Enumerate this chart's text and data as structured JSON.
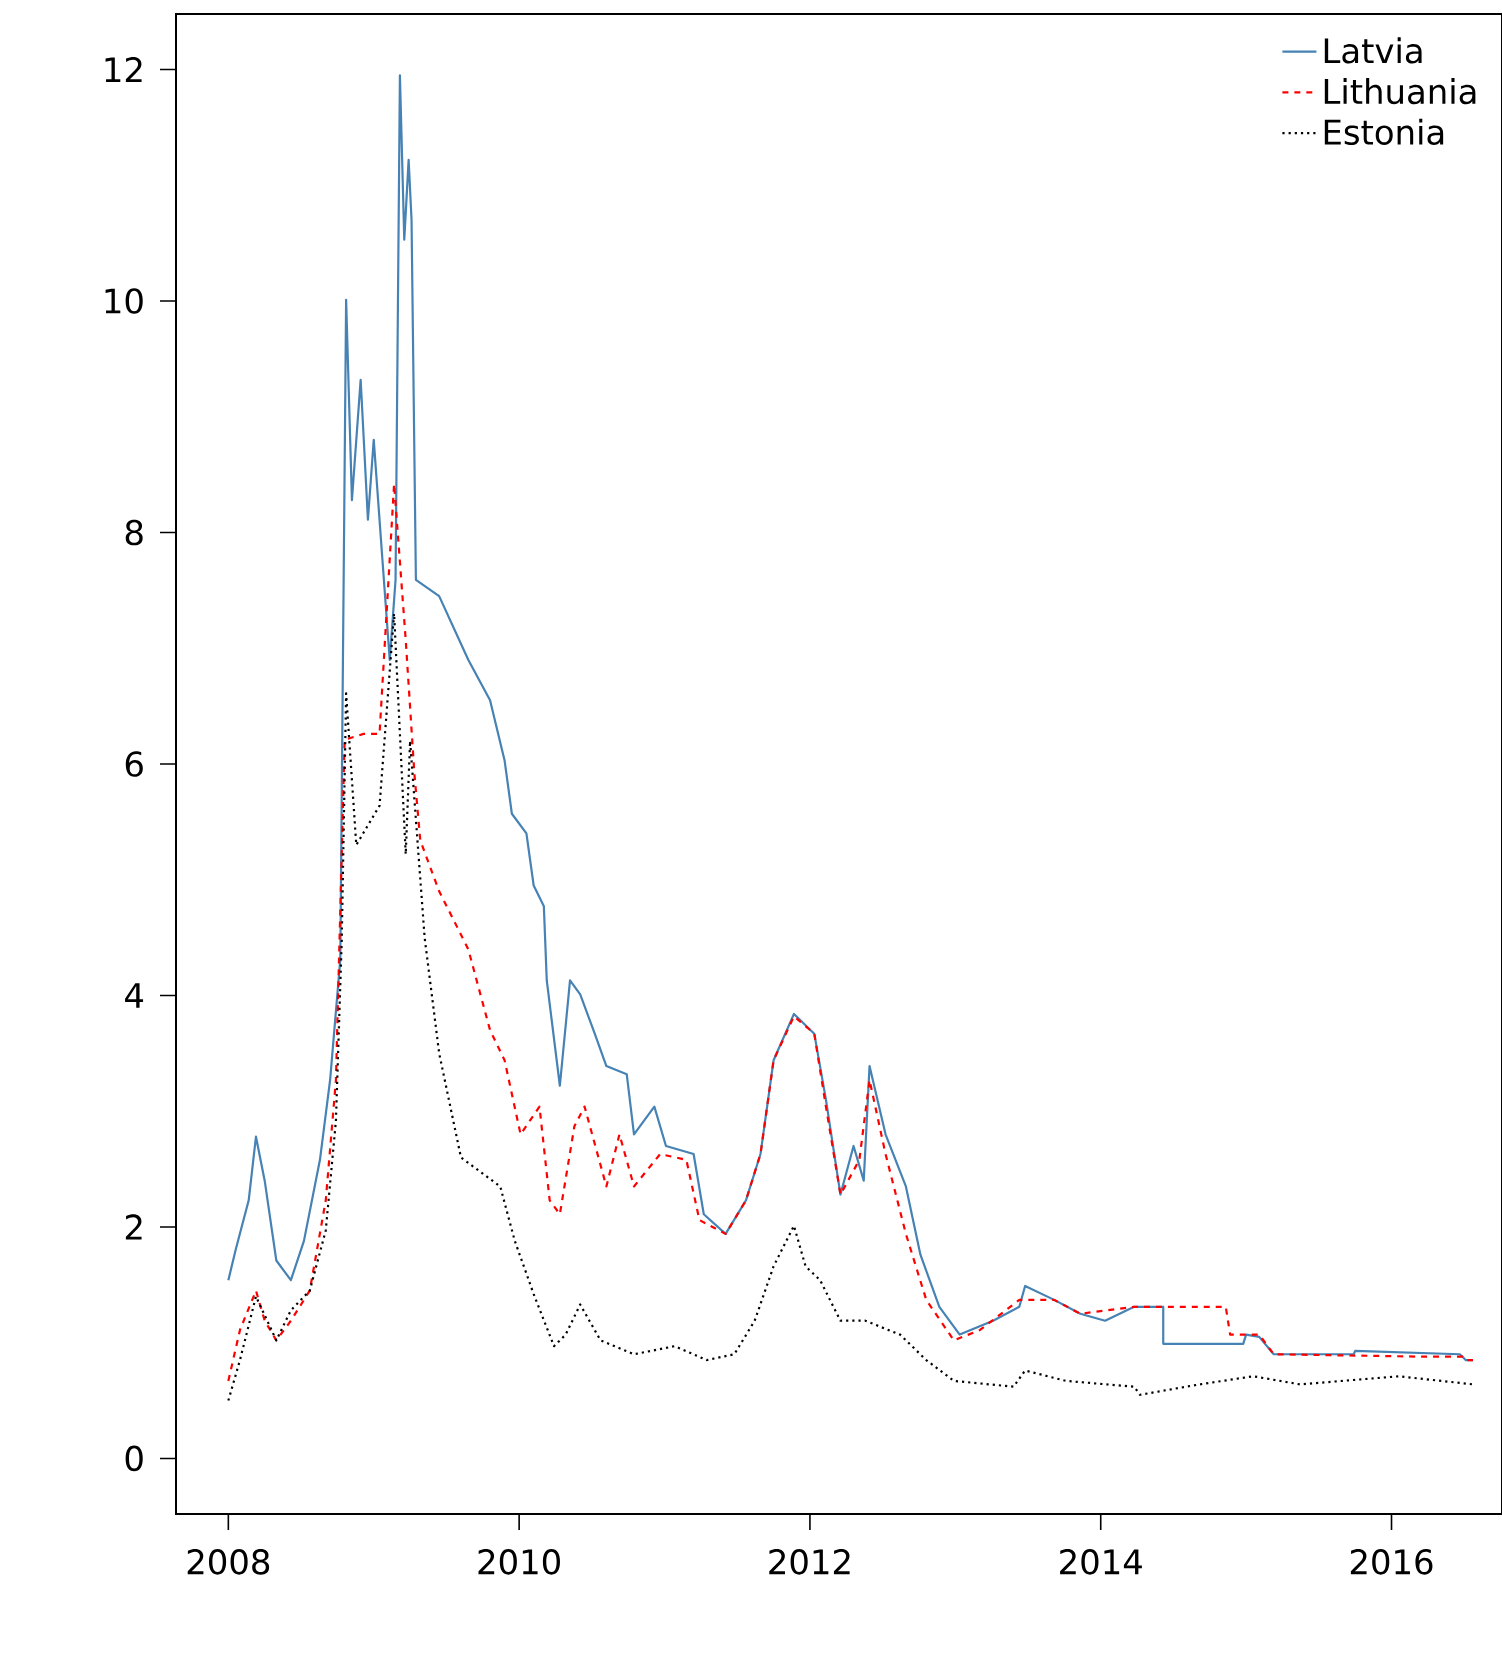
{
  "chart_data": {
    "type": "line",
    "xlim": [
      2007.64,
      2016.76
    ],
    "ylim": [
      -0.48,
      12.48
    ],
    "xticks": [
      2008,
      2010,
      2012,
      2014,
      2016
    ],
    "yticks": [
      0,
      2,
      4,
      6,
      8,
      10,
      12
    ],
    "legend": "top right",
    "marker": "none",
    "grid": false,
    "series": [
      {
        "name": "Latvia",
        "color": "#4682b4",
        "line_style": "solid",
        "x": [
          2008.0,
          2008.05,
          2008.14,
          2008.19,
          2008.25,
          2008.33,
          2008.43,
          2008.52,
          2008.63,
          2008.7,
          2008.77,
          2008.81,
          2008.85,
          2008.91,
          2008.96,
          2009.0,
          2009.06,
          2009.11,
          2009.15,
          2009.18,
          2009.21,
          2009.24,
          2009.26,
          2009.29,
          2009.45,
          2009.65,
          2009.8,
          2009.9,
          2009.95,
          2010.05,
          2010.1,
          2010.17,
          2010.19,
          2010.28,
          2010.35,
          2010.42,
          2010.52,
          2010.6,
          2010.74,
          2010.79,
          2010.93,
          2011.01,
          2011.2,
          2011.27,
          2011.42,
          2011.56,
          2011.66,
          2011.75,
          2011.89,
          2012.03,
          2012.11,
          2012.21,
          2012.3,
          2012.37,
          2012.41,
          2012.52,
          2012.66,
          2012.76,
          2012.89,
          2013.03,
          2013.26,
          2013.44,
          2013.48,
          2013.68,
          2013.86,
          2014.03,
          2014.23,
          2014.43,
          2014.43,
          2014.98,
          2015.0,
          2015.09,
          2015.19,
          2015.74,
          2015.75,
          2016.47,
          2016.51,
          2016.56
        ],
        "values": [
          1.54,
          1.8,
          2.23,
          2.78,
          2.4,
          1.71,
          1.54,
          1.88,
          2.58,
          3.27,
          4.31,
          10.01,
          8.28,
          9.32,
          8.11,
          8.8,
          7.76,
          6.9,
          7.59,
          11.95,
          10.53,
          11.22,
          10.7,
          7.59,
          7.45,
          6.9,
          6.55,
          6.03,
          5.57,
          5.4,
          4.95,
          4.77,
          4.13,
          3.22,
          4.13,
          4.01,
          3.67,
          3.39,
          3.32,
          2.8,
          3.04,
          2.7,
          2.63,
          2.11,
          1.94,
          2.23,
          2.63,
          3.44,
          3.84,
          3.67,
          3.1,
          2.28,
          2.7,
          2.4,
          3.39,
          2.8,
          2.35,
          1.76,
          1.31,
          1.07,
          1.19,
          1.31,
          1.49,
          1.37,
          1.25,
          1.19,
          1.31,
          1.31,
          0.99,
          0.99,
          1.07,
          1.05,
          0.9,
          0.9,
          0.93,
          0.9,
          0.85,
          0.85
        ]
      },
      {
        "name": "Lithuania",
        "color": "#ff0000",
        "line_style": "dashed",
        "x": [
          2008.0,
          2008.08,
          2008.19,
          2008.25,
          2008.33,
          2008.43,
          2008.56,
          2008.67,
          2008.74,
          2008.8,
          2008.93,
          2009.04,
          2009.14,
          2009.22,
          2009.28,
          2009.32,
          2009.45,
          2009.65,
          2009.8,
          2009.9,
          2010.01,
          2010.14,
          2010.21,
          2010.28,
          2010.38,
          2010.45,
          2010.6,
          2010.69,
          2010.79,
          2010.97,
          2011.15,
          2011.24,
          2011.42,
          2011.56,
          2011.66,
          2011.75,
          2011.89,
          2012.03,
          2012.11,
          2012.21,
          2012.34,
          2012.41,
          2012.52,
          2012.66,
          2012.8,
          2012.99,
          2013.17,
          2013.44,
          2013.68,
          2013.86,
          2014.23,
          2014.86,
          2014.89,
          2015.09,
          2015.19,
          2016.19,
          2016.49,
          2016.51,
          2016.56
        ],
        "values": [
          0.67,
          1.11,
          1.45,
          1.19,
          1.02,
          1.19,
          1.45,
          2.23,
          3.27,
          6.21,
          6.26,
          6.26,
          8.42,
          7.07,
          5.91,
          5.34,
          4.9,
          4.4,
          3.7,
          3.44,
          2.8,
          3.04,
          2.23,
          2.11,
          2.87,
          3.04,
          2.35,
          2.8,
          2.35,
          2.63,
          2.58,
          2.06,
          1.94,
          2.23,
          2.63,
          3.44,
          3.82,
          3.67,
          3.04,
          2.28,
          2.58,
          3.27,
          2.63,
          1.94,
          1.37,
          1.02,
          1.11,
          1.37,
          1.37,
          1.25,
          1.31,
          1.31,
          1.07,
          1.07,
          0.9,
          0.88,
          0.88,
          0.85,
          0.85
        ]
      },
      {
        "name": "Estonia",
        "color": "#000000",
        "line_style": "dotted",
        "x": [
          2008.0,
          2008.08,
          2008.19,
          2008.33,
          2008.43,
          2008.56,
          2008.67,
          2008.74,
          2008.78,
          2008.81,
          2008.88,
          2009.04,
          2009.14,
          2009.22,
          2009.25,
          2009.35,
          2009.45,
          2009.6,
          2009.87,
          2009.97,
          2010.1,
          2010.24,
          2010.32,
          2010.42,
          2010.56,
          2010.79,
          2011.07,
          2011.29,
          2011.48,
          2011.62,
          2011.75,
          2011.89,
          2011.97,
          2012.07,
          2012.21,
          2012.38,
          2012.62,
          2012.8,
          2012.99,
          2013.4,
          2013.48,
          2013.76,
          2014.23,
          2014.27,
          2014.68,
          2015.05,
          2015.37,
          2016.05,
          2016.56
        ],
        "values": [
          0.5,
          0.85,
          1.4,
          1.02,
          1.28,
          1.45,
          1.97,
          2.92,
          4.48,
          6.61,
          5.3,
          5.64,
          7.3,
          5.22,
          6.2,
          4.5,
          3.5,
          2.6,
          2.35,
          1.88,
          1.42,
          0.97,
          1.07,
          1.33,
          1.02,
          0.9,
          0.97,
          0.85,
          0.9,
          1.19,
          1.66,
          2.01,
          1.66,
          1.54,
          1.19,
          1.19,
          1.07,
          0.85,
          0.67,
          0.62,
          0.76,
          0.67,
          0.62,
          0.55,
          0.64,
          0.71,
          0.64,
          0.71,
          0.64
        ]
      }
    ]
  }
}
